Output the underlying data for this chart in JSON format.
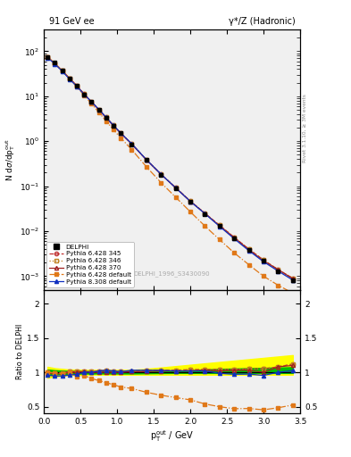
{
  "title_left": "91 GeV ee",
  "title_right": "γ*/Z (Hadronic)",
  "right_label": "Rivet 3.1.10, ≥ 3M events",
  "watermark": "DELPHI_1996_S3430090",
  "xlabel": "p$_T^{out}$ / GeV",
  "ylabel_main": "N dσ/dp$^{out}_T$",
  "ylabel_ratio": "Ratio to DELPHI",
  "xlim": [
    0,
    3.5
  ],
  "ylim_main": [
    0.0005,
    300
  ],
  "ylim_ratio": [
    0.4,
    2.2
  ],
  "yticks_ratio": [
    0.5,
    1.0,
    1.5,
    2.0
  ],
  "ytick_labels_ratio": [
    "0.5",
    "1",
    "1.5",
    "2"
  ],
  "x_data": [
    0.05,
    0.15,
    0.25,
    0.35,
    0.45,
    0.55,
    0.65,
    0.75,
    0.85,
    0.95,
    1.05,
    1.2,
    1.4,
    1.6,
    1.8,
    2.0,
    2.2,
    2.4,
    2.6,
    2.8,
    3.0,
    3.2,
    3.4
  ],
  "delphi_y": [
    75,
    55,
    38,
    25,
    17,
    11,
    7.5,
    5.0,
    3.3,
    2.2,
    1.5,
    0.85,
    0.38,
    0.18,
    0.09,
    0.045,
    0.024,
    0.013,
    0.007,
    0.0038,
    0.0022,
    0.0013,
    0.0008
  ],
  "delphi_err": [
    3,
    2.5,
    1.8,
    1.2,
    0.8,
    0.5,
    0.35,
    0.22,
    0.15,
    0.1,
    0.07,
    0.04,
    0.018,
    0.009,
    0.004,
    0.002,
    0.0011,
    0.0006,
    0.0003,
    0.00018,
    0.0001,
    7e-05,
    5e-05
  ],
  "py6_345_y": [
    74,
    53,
    37,
    25,
    17,
    11.2,
    7.5,
    5.1,
    3.4,
    2.25,
    1.52,
    0.87,
    0.39,
    0.185,
    0.093,
    0.047,
    0.025,
    0.0135,
    0.0073,
    0.004,
    0.0023,
    0.0014,
    0.0009
  ],
  "py6_346_y": [
    74,
    53,
    37,
    25,
    17,
    11.2,
    7.5,
    5.1,
    3.4,
    2.25,
    1.52,
    0.87,
    0.39,
    0.185,
    0.093,
    0.047,
    0.025,
    0.0135,
    0.0073,
    0.004,
    0.0023,
    0.0014,
    0.0009
  ],
  "py6_370_y": [
    74,
    53,
    37,
    25,
    17,
    11.1,
    7.5,
    5.0,
    3.3,
    2.2,
    1.5,
    0.86,
    0.385,
    0.183,
    0.092,
    0.046,
    0.0248,
    0.0132,
    0.0072,
    0.0039,
    0.0022,
    0.0014,
    0.00088
  ],
  "py6_default_y": [
    75,
    54,
    37,
    25,
    16,
    10.5,
    6.8,
    4.4,
    2.8,
    1.8,
    1.18,
    0.65,
    0.27,
    0.12,
    0.057,
    0.027,
    0.013,
    0.0065,
    0.0033,
    0.0018,
    0.001,
    0.00063,
    0.00042
  ],
  "py8_default_y": [
    72,
    52,
    36,
    24,
    16.5,
    11.0,
    7.5,
    5.1,
    3.4,
    2.25,
    1.52,
    0.875,
    0.39,
    0.185,
    0.092,
    0.046,
    0.0245,
    0.0128,
    0.0068,
    0.0037,
    0.0021,
    0.0013,
    0.00082
  ],
  "ratio_345": [
    1.0,
    0.99,
    0.99,
    1.01,
    1.01,
    1.02,
    1.01,
    1.02,
    1.03,
    1.02,
    1.01,
    1.02,
    1.03,
    1.03,
    1.03,
    1.04,
    1.04,
    1.04,
    1.04,
    1.05,
    1.05,
    1.08,
    1.12
  ],
  "ratio_346": [
    1.0,
    0.99,
    0.99,
    1.01,
    1.01,
    1.02,
    1.01,
    1.02,
    1.03,
    1.02,
    1.01,
    1.02,
    1.03,
    1.03,
    1.03,
    1.04,
    1.04,
    1.04,
    1.04,
    1.05,
    1.05,
    1.08,
    1.12
  ],
  "ratio_370": [
    0.99,
    0.98,
    0.98,
    1.0,
    1.0,
    1.01,
    1.0,
    1.0,
    1.0,
    1.0,
    1.0,
    1.01,
    1.01,
    1.02,
    1.02,
    1.02,
    1.03,
    1.02,
    1.03,
    1.03,
    1.0,
    1.08,
    1.1
  ],
  "ratio_py6def": [
    1.0,
    0.99,
    0.98,
    1.0,
    0.94,
    0.955,
    0.91,
    0.88,
    0.85,
    0.82,
    0.787,
    0.765,
    0.71,
    0.667,
    0.633,
    0.6,
    0.54,
    0.5,
    0.471,
    0.474,
    0.455,
    0.485,
    0.525
  ],
  "ratio_py8def": [
    0.96,
    0.945,
    0.947,
    0.96,
    0.97,
    1.0,
    1.0,
    1.02,
    1.03,
    1.02,
    1.01,
    1.03,
    1.03,
    1.03,
    1.02,
    1.02,
    1.02,
    0.985,
    0.971,
    0.974,
    0.955,
    1.0,
    1.025
  ],
  "err_band_yellow_lo": [
    0.92,
    0.94,
    0.95,
    0.96,
    0.96,
    0.965,
    0.965,
    0.965,
    0.965,
    0.965,
    0.965,
    0.965,
    0.965,
    0.965,
    0.965,
    0.965,
    0.965,
    0.965,
    0.965,
    0.965,
    0.965,
    0.965,
    0.965
  ],
  "err_band_yellow_hi": [
    1.08,
    1.06,
    1.05,
    1.04,
    1.04,
    1.035,
    1.035,
    1.035,
    1.035,
    1.035,
    1.035,
    1.035,
    1.05,
    1.07,
    1.09,
    1.11,
    1.13,
    1.15,
    1.17,
    1.19,
    1.21,
    1.23,
    1.25
  ],
  "err_band_green_lo": [
    0.96,
    0.97,
    0.975,
    0.98,
    0.98,
    0.982,
    0.982,
    0.982,
    0.982,
    0.982,
    0.982,
    0.982,
    0.985,
    0.988,
    0.99,
    0.99,
    0.99,
    0.99,
    0.99,
    0.99,
    0.99,
    0.99,
    0.99
  ],
  "err_band_green_hi": [
    1.04,
    1.03,
    1.025,
    1.02,
    1.02,
    1.018,
    1.018,
    1.018,
    1.018,
    1.018,
    1.018,
    1.018,
    1.02,
    1.022,
    1.025,
    1.03,
    1.04,
    1.05,
    1.055,
    1.06,
    1.065,
    1.07,
    1.075
  ],
  "color_345": "#c03030",
  "color_346": "#c08020",
  "color_370": "#a02020",
  "color_py6def": "#e07818",
  "color_py8def": "#1030c0",
  "color_delphi": "#000000",
  "color_yellow": "#ffff00",
  "color_green": "#00bb00",
  "bg_color": "#f0f0f0"
}
